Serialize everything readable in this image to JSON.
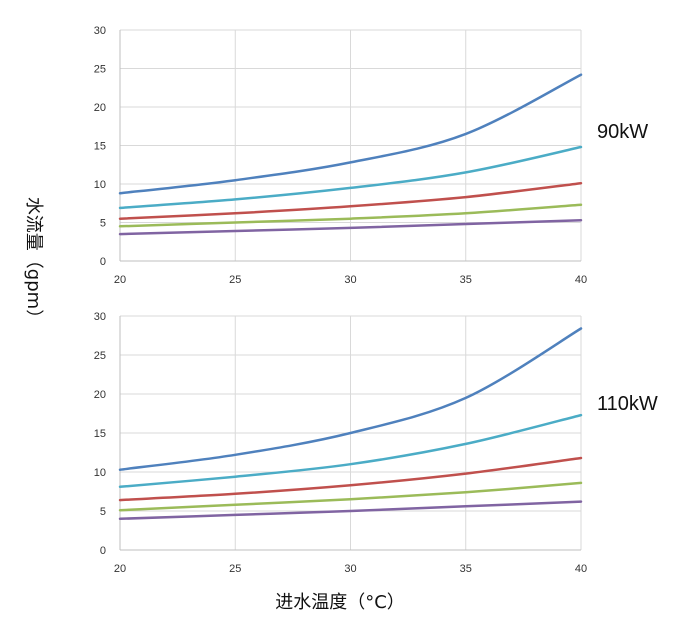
{
  "y_label": "水流量（gpm）",
  "x_label": "进水温度（°C）",
  "colors": [
    "#4F81BD",
    "#4BACC6",
    "#C0504D",
    "#9BBB59",
    "#8064A2"
  ],
  "chart_data": [
    {
      "type": "line",
      "power_label": "90kW",
      "xlim": [
        20,
        40
      ],
      "ylim": [
        0,
        30
      ],
      "xticks": [
        20,
        25,
        30,
        35,
        40
      ],
      "yticks": [
        0,
        5,
        10,
        15,
        20,
        25,
        30
      ],
      "grid": true,
      "x": [
        20,
        25,
        30,
        35,
        40
      ],
      "series": [
        {
          "values": [
            8.8,
            10.5,
            12.8,
            16.5,
            24.2
          ]
        },
        {
          "values": [
            6.9,
            8.0,
            9.5,
            11.5,
            14.8
          ]
        },
        {
          "values": [
            5.5,
            6.2,
            7.1,
            8.3,
            10.1
          ]
        },
        {
          "values": [
            4.5,
            5.0,
            5.5,
            6.2,
            7.3
          ]
        },
        {
          "values": [
            3.5,
            3.9,
            4.3,
            4.8,
            5.3
          ]
        }
      ]
    },
    {
      "type": "line",
      "power_label": "110kW",
      "xlim": [
        20,
        40
      ],
      "ylim": [
        0,
        30
      ],
      "xticks": [
        20,
        25,
        30,
        35,
        40
      ],
      "yticks": [
        0,
        5,
        10,
        15,
        20,
        25,
        30
      ],
      "grid": true,
      "x": [
        20,
        25,
        30,
        35,
        40
      ],
      "series": [
        {
          "values": [
            10.3,
            12.2,
            15.0,
            19.5,
            28.4
          ]
        },
        {
          "values": [
            8.1,
            9.4,
            11.0,
            13.6,
            17.3
          ]
        },
        {
          "values": [
            6.4,
            7.2,
            8.3,
            9.8,
            11.8
          ]
        },
        {
          "values": [
            5.1,
            5.8,
            6.5,
            7.4,
            8.6
          ]
        },
        {
          "values": [
            4.0,
            4.5,
            5.0,
            5.6,
            6.2
          ]
        }
      ]
    }
  ]
}
